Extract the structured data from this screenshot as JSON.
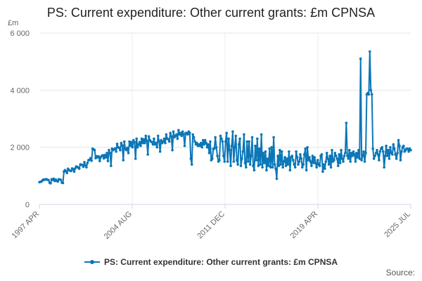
{
  "chart_data": {
    "type": "line",
    "title": "PS: Current expenditure: Other current grants: £m CPNSA",
    "y_unit_label": "£m",
    "ylim": [
      0,
      6000
    ],
    "y_ticks": [
      0,
      2000,
      4000,
      6000
    ],
    "y_tick_labels": [
      "0",
      "2 000",
      "4 000",
      "6 000"
    ],
    "x_tick_labels": [
      "1997 APR",
      "2004 AUG",
      "2011 DEC",
      "2019 APR",
      "2025 JUL"
    ],
    "x_start": "1997 APR",
    "x_end": "2025 JUL",
    "x_frequency": "monthly",
    "grid": true,
    "legend_position": "bottom",
    "series": [
      {
        "name": "PS: Current expenditure: Other current grants: £m CPNSA",
        "color": "#0b76b7",
        "marker": "circle",
        "values": [
          780,
          790,
          800,
          840,
          870,
          860,
          880,
          880,
          860,
          850,
          760,
          740,
          880,
          860,
          900,
          820,
          870,
          830,
          800,
          880,
          870,
          860,
          760,
          750,
          1150,
          1200,
          1160,
          1100,
          1250,
          1200,
          1180,
          1170,
          1260,
          1230,
          1150,
          1260,
          1330,
          1310,
          1290,
          1250,
          1400,
          1390,
          1380,
          1320,
          1480,
          1370,
          1300,
          1450,
          1550,
          1560,
          1620,
          1530,
          1950,
          1930,
          1900,
          1620,
          1690,
          1650,
          1680,
          1520,
          1650,
          1700,
          1720,
          1610,
          1730,
          1650,
          1800,
          1520,
          1900,
          1800,
          1350,
          1950,
          1900,
          1930,
          1960,
          1850,
          2120,
          2000,
          1980,
          1900,
          2150,
          2060,
          1550,
          2200,
          1950,
          1900,
          1980,
          1800,
          2200,
          2050,
          2180,
          2000,
          2250,
          2180,
          1600,
          2300,
          2000,
          2100,
          2180,
          2050,
          2300,
          2150,
          2280,
          2150,
          2400,
          2220,
          1750,
          2380,
          2250,
          2200,
          2180,
          2100,
          2300,
          2100,
          2150,
          2000,
          2400,
          2200,
          1850,
          2250,
          2150,
          2200,
          2300,
          2150,
          2450,
          2300,
          2280,
          2200,
          2500,
          2380,
          1900,
          2550,
          2350,
          2400,
          2450,
          2300,
          2600,
          2450,
          2500,
          2400,
          2550,
          2450,
          2050,
          2500,
          2500,
          2450,
          2550,
          2500,
          1600,
          1400,
          2450,
          2350,
          2200,
          2100,
          2150,
          2050,
          2100,
          2050,
          2150,
          2000,
          2250,
          2100,
          2250,
          2150,
          2000,
          2100,
          1800,
          2200,
          1550,
          1600,
          1950,
          1950,
          2350,
          2000,
          1700,
          1500,
          1550,
          2400,
          2300,
          2200,
          1700,
          1500,
          2200,
          2500,
          1500,
          2300,
          1900,
          1350,
          2050,
          2550,
          1500,
          2000,
          2400,
          1550,
          1400,
          2100,
          2300,
          1350,
          1600,
          1850,
          2450,
          1450,
          1300,
          2200,
          1500,
          2200,
          1400,
          1700,
          2350,
          1350,
          1200,
          2050,
          1550,
          2300,
          1350,
          1950,
          1400,
          2450,
          1300,
          1800,
          1450,
          1850,
          1200,
          1600,
          1350,
          1950,
          1300,
          2000,
          1300,
          2350,
          1400,
          1250,
          900,
          1700,
          1350,
          1900,
          1400,
          1850,
          1300,
          1500,
          1650,
          1350,
          1600,
          1400,
          1850,
          1200,
          1650,
          1700,
          1550,
          1400,
          1300,
          1850,
          1650,
          1400,
          1500,
          1750,
          1600,
          1300,
          1400,
          1750,
          1950,
          1200,
          2000,
          1550,
          1650,
          1500,
          1350,
          1700,
          1450,
          1650,
          1450,
          1300,
          1550,
          1400,
          1350,
          1700,
          1750,
          1150,
          1400,
          1250,
          1500,
          1800,
          1600,
          1400,
          1700,
          1300,
          1900,
          1500,
          1550,
          1800,
          1700,
          1600,
          1350,
          1750,
          1450,
          1900,
          1600,
          1500,
          1700,
          1800,
          2850,
          1700,
          1600,
          1900,
          1500,
          1800,
          1700,
          1850,
          1750,
          1500,
          1800,
          1650,
          1900,
          1600,
          5100,
          1550,
          1700,
          1850,
          1500,
          1800,
          3850,
          3900,
          3850,
          5350,
          4000,
          3850,
          1950,
          1600,
          1700,
          1800,
          1900,
          1750,
          1550,
          1850,
          1950,
          2000,
          1850,
          1300,
          1700,
          2050,
          1700,
          1900,
          1600,
          2000,
          1800,
          1750,
          2100,
          1950,
          1750,
          1600,
          1800,
          2250,
          2050,
          1550,
          1850,
          2000,
          2050,
          1850,
          1900,
          1950,
          1950,
          1850,
          1950,
          1900
        ]
      }
    ]
  },
  "source_label": "Source:"
}
